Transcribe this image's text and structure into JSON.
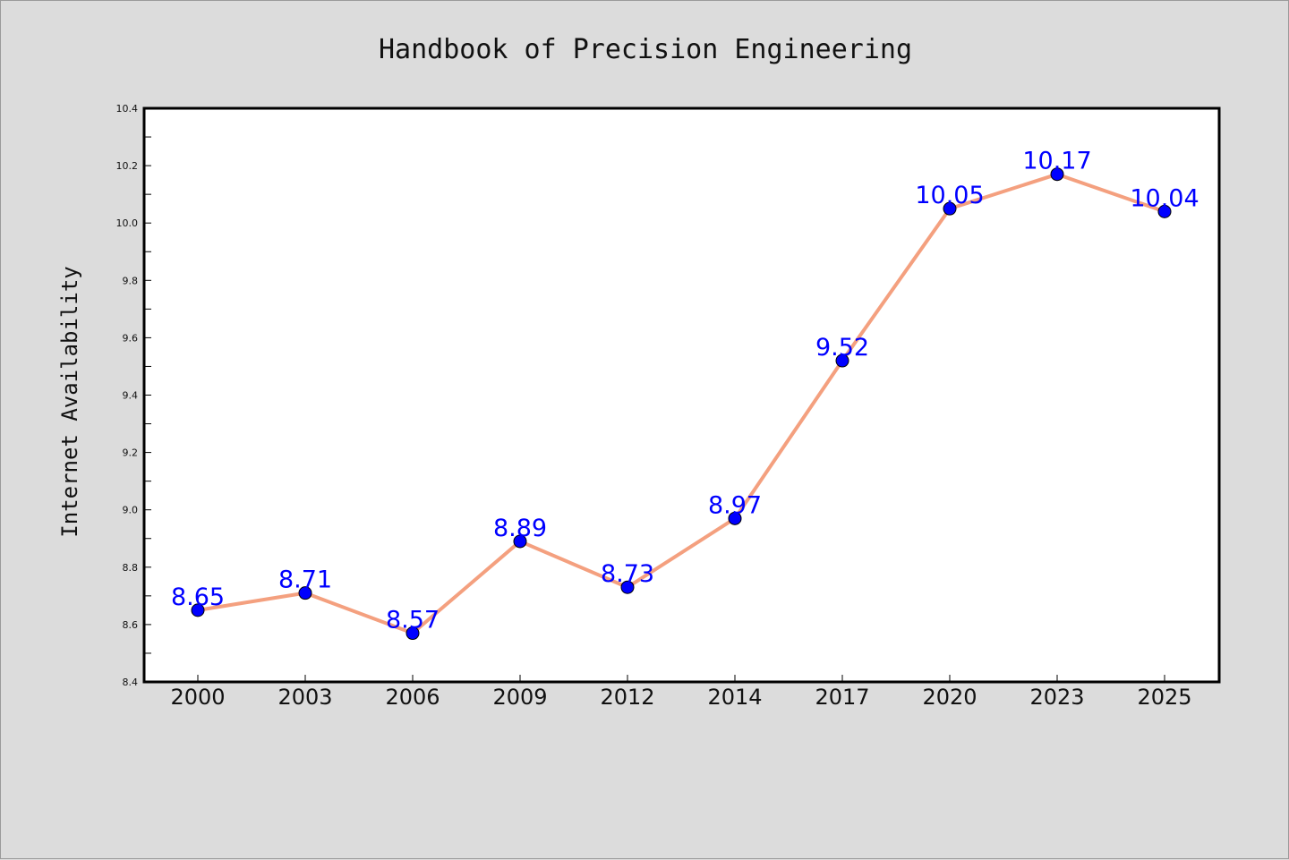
{
  "chart_data": {
    "type": "line",
    "title": "Handbook of Precision Engineering",
    "xlabel": "",
    "ylabel": "Internet Availability",
    "categories": [
      "2000",
      "2003",
      "2006",
      "2009",
      "2012",
      "2014",
      "2017",
      "2020",
      "2023",
      "2025"
    ],
    "series": [
      {
        "values": [
          8.65,
          8.71,
          8.57,
          8.89,
          8.73,
          8.97,
          9.52,
          10.05,
          10.17,
          10.04
        ],
        "labels": [
          "8.65",
          "8.71",
          "8.57",
          "8.89",
          "8.73",
          "8.97",
          "9.52",
          "10.05",
          "10.17",
          "10.04"
        ],
        "line_color": "#f4a07f",
        "marker_color": "#0000ff",
        "label_color": "#0000ff"
      }
    ],
    "ylim": [
      8.4,
      10.4
    ],
    "yticks": [
      8.4,
      8.6,
      8.8,
      9.0,
      9.2,
      9.4,
      9.6,
      9.8,
      10.0,
      10.2,
      10.4
    ],
    "ytick_labels": [
      "8.4",
      "8.6",
      "8.8",
      "9.0",
      "9.2",
      "9.4",
      "9.6",
      "9.8",
      "10.0",
      "10.2",
      "10.4"
    ],
    "grid": false,
    "legend": "none",
    "colors": {
      "figure_background": "#dcdcdc",
      "plot_background": "#ffffff",
      "axis": "#000000"
    }
  }
}
